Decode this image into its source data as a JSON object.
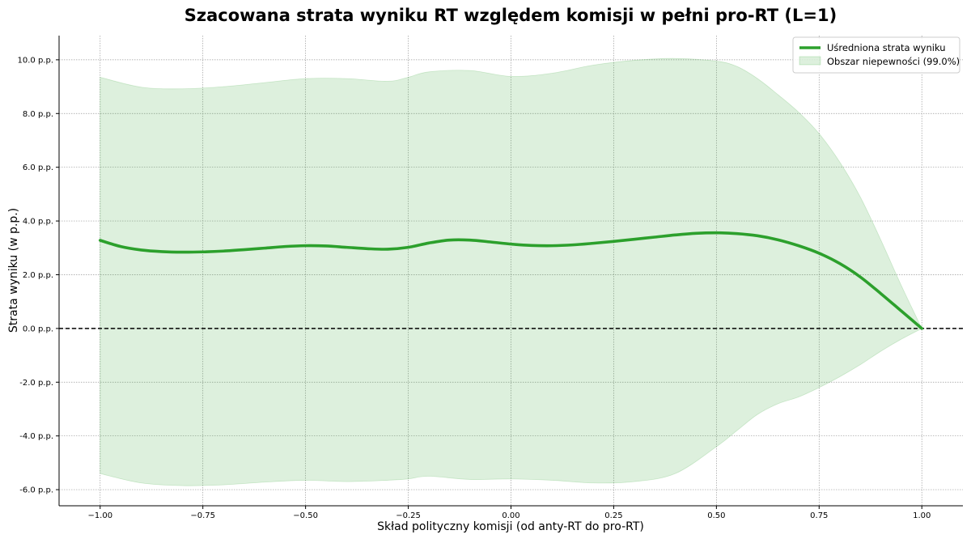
{
  "chart_data": {
    "type": "line",
    "title": "Szacowana strata wyniku RT względem komisji w pełni pro-RT (L=1)",
    "xlabel": "Skład polityczny komisji (od anty-RT do pro-RT)",
    "ylabel": "Strata wyniku (w p.p.)",
    "xlim": [
      -1.1,
      1.1
    ],
    "ylim": [
      -6.6,
      10.9
    ],
    "x_ticks": [
      -1.0,
      -0.75,
      -0.5,
      -0.25,
      0.0,
      0.25,
      0.5,
      0.75,
      1.0
    ],
    "x_tick_labels": [
      "−1.00",
      "−0.75",
      "−0.50",
      "−0.25",
      "0.00",
      "0.25",
      "0.50",
      "0.75",
      "1.00"
    ],
    "y_ticks": [
      -6,
      -4,
      -2,
      0,
      2,
      4,
      6,
      8,
      10
    ],
    "y_tick_labels": [
      "-6.0 p.p.",
      "-4.0 p.p.",
      "-2.0 p.p.",
      "0.0 p.p.",
      "2.0 p.p.",
      "4.0 p.p.",
      "6.0 p.p.",
      "8.0 p.p.",
      "10.0 p.p."
    ],
    "grid": true,
    "legend_position": "top-right",
    "reference_line": {
      "y": 0,
      "style": "dashed",
      "color": "#000000"
    },
    "series": [
      {
        "name": "Uśredniona strata wyniku",
        "kind": "line",
        "color": "#2ca02c",
        "x": [
          -1.0,
          -0.95,
          -0.9,
          -0.85,
          -0.8,
          -0.75,
          -0.7,
          -0.65,
          -0.6,
          -0.55,
          -0.5,
          -0.45,
          -0.4,
          -0.35,
          -0.3,
          -0.25,
          -0.2,
          -0.15,
          -0.1,
          -0.05,
          0.0,
          0.05,
          0.1,
          0.15,
          0.2,
          0.25,
          0.3,
          0.35,
          0.4,
          0.45,
          0.5,
          0.55,
          0.6,
          0.65,
          0.7,
          0.75,
          0.8,
          0.85,
          0.9,
          0.95,
          1.0
        ],
        "y": [
          3.28,
          3.05,
          2.92,
          2.86,
          2.84,
          2.85,
          2.88,
          2.93,
          2.99,
          3.05,
          3.08,
          3.07,
          3.02,
          2.97,
          2.95,
          3.02,
          3.18,
          3.29,
          3.29,
          3.22,
          3.14,
          3.09,
          3.08,
          3.11,
          3.17,
          3.24,
          3.32,
          3.4,
          3.48,
          3.54,
          3.56,
          3.53,
          3.45,
          3.3,
          3.08,
          2.8,
          2.42,
          1.92,
          1.3,
          0.65,
          0.0
        ]
      },
      {
        "name": "Obszar niepewności (99.0%)",
        "kind": "band",
        "color": "#2ca02c",
        "x": [
          -1.0,
          -0.9,
          -0.8,
          -0.7,
          -0.6,
          -0.5,
          -0.4,
          -0.3,
          -0.25,
          -0.2,
          -0.1,
          0.0,
          0.1,
          0.2,
          0.3,
          0.4,
          0.5,
          0.55,
          0.6,
          0.65,
          0.7,
          0.75,
          0.8,
          0.85,
          0.9,
          0.95,
          1.0
        ],
        "lower": [
          -5.4,
          -5.75,
          -5.85,
          -5.82,
          -5.72,
          -5.65,
          -5.7,
          -5.65,
          -5.6,
          -5.5,
          -5.62,
          -5.6,
          -5.65,
          -5.75,
          -5.7,
          -5.4,
          -4.4,
          -3.8,
          -3.2,
          -2.8,
          -2.55,
          -2.2,
          -1.8,
          -1.35,
          -0.85,
          -0.4,
          0.0
        ],
        "upper": [
          9.35,
          8.98,
          8.92,
          9.0,
          9.15,
          9.3,
          9.3,
          9.2,
          9.35,
          9.55,
          9.6,
          9.38,
          9.5,
          9.8,
          9.98,
          10.05,
          9.95,
          9.75,
          9.3,
          8.7,
          8.05,
          7.25,
          6.2,
          4.9,
          3.3,
          1.6,
          0.0
        ]
      }
    ]
  }
}
